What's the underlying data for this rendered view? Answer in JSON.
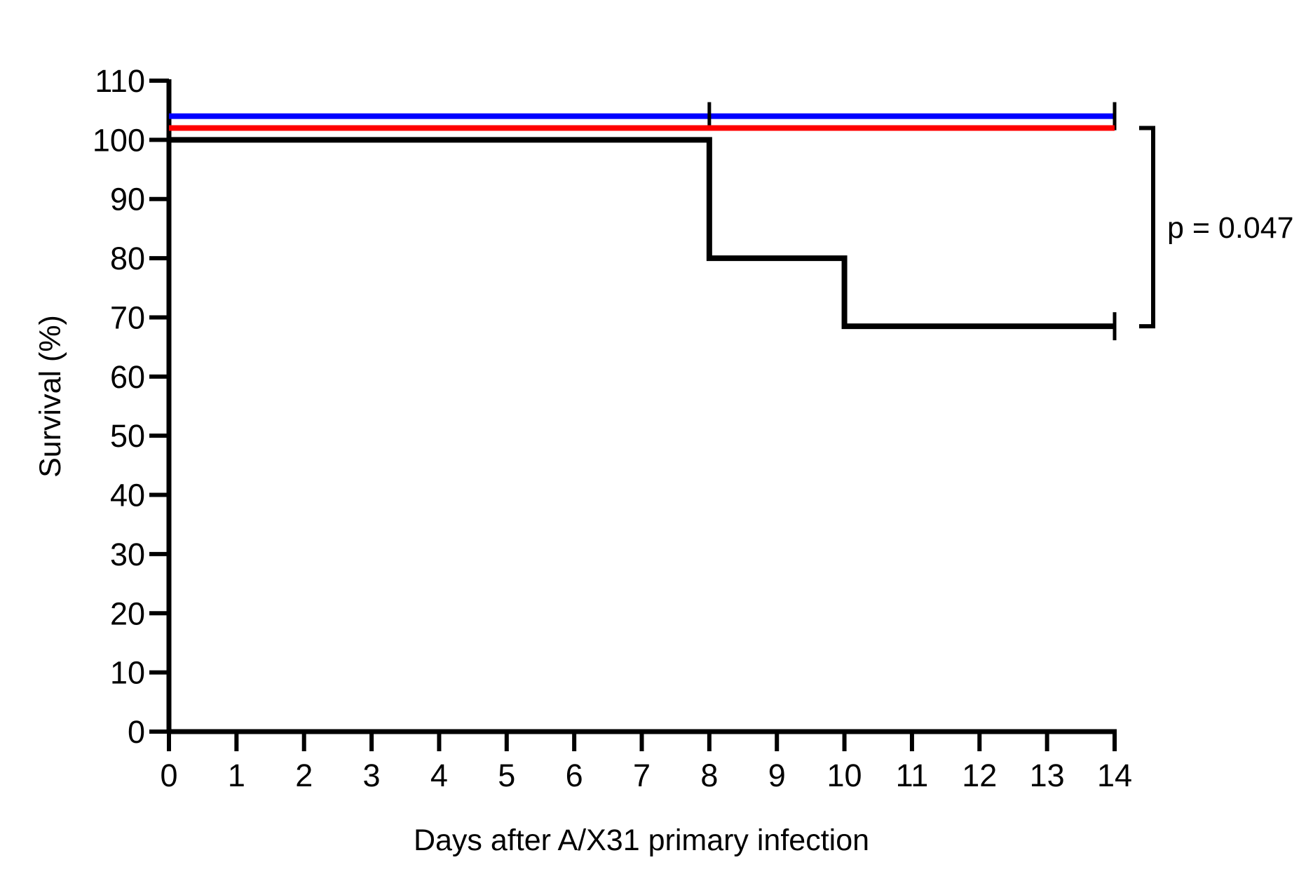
{
  "chart_data": {
    "type": "line",
    "subtype": "kaplan-meier step",
    "title": "",
    "xlabel": "Days after A/X31 primary infection",
    "ylabel": "Survival (%)",
    "xlim": [
      0,
      14
    ],
    "ylim": [
      0,
      110
    ],
    "x_ticks": [
      0,
      1,
      2,
      3,
      4,
      5,
      6,
      7,
      8,
      9,
      10,
      11,
      12,
      13,
      14
    ],
    "y_ticks": [
      0,
      10,
      20,
      30,
      40,
      50,
      60,
      70,
      80,
      90,
      100,
      110
    ],
    "grid": false,
    "legend": "none",
    "series": [
      {
        "color": "#0000ff",
        "x": [
          0,
          14
        ],
        "y": [
          104,
          104
        ],
        "censor_x": [
          8,
          14
        ],
        "displayed_offset_of": 100
      },
      {
        "color": "#ff0000",
        "x": [
          0,
          14
        ],
        "y": [
          102,
          102
        ],
        "censor_x": [],
        "displayed_offset_of": 100
      },
      {
        "color": "#000000",
        "x": [
          0,
          8,
          8,
          10,
          10,
          14
        ],
        "y": [
          100,
          100,
          80,
          80,
          68.5,
          68.5
        ],
        "censor_x": [
          14
        ]
      }
    ],
    "annotations": [
      {
        "text": "p = 0.047",
        "bracket_y": [
          102,
          68.5
        ],
        "placement": "right"
      }
    ]
  }
}
